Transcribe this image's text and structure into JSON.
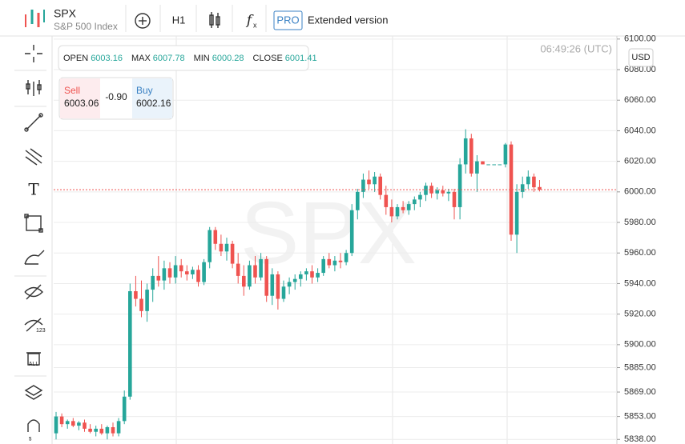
{
  "header": {
    "symbol": "SPX",
    "name": "S&P 500 Index",
    "timeframe": "H1",
    "pro": "PRO",
    "extended": "Extended version"
  },
  "ohlc": [
    {
      "label": "OPEN",
      "value": "6003.16"
    },
    {
      "label": "MAX",
      "value": "6007.78"
    },
    {
      "label": "MIN",
      "value": "6000.28"
    },
    {
      "label": "CLOSE",
      "value": "6001.41"
    }
  ],
  "trade": {
    "sell_label": "Sell",
    "sell": "6003.06",
    "spread": "-0.90",
    "buy_label": "Buy",
    "buy": "6002.16"
  },
  "clock": "06:49:26 (UTC)",
  "currency": "USD",
  "chart_data": {
    "type": "candlestick",
    "watermark": "SPX",
    "up_color": "#26a69a",
    "down_color": "#ef5350",
    "grid": true,
    "ylim": [
      5835,
      6102
    ],
    "yticks": [
      {
        "value": 6100,
        "label": "6100.00"
      },
      {
        "value": 6080,
        "label": "6080.00"
      },
      {
        "value": 6060,
        "label": "6060.00"
      },
      {
        "value": 6040,
        "label": "6040.00"
      },
      {
        "value": 6020,
        "label": "6020.00"
      },
      {
        "value": 6000,
        "label": "6000.00"
      },
      {
        "value": 5980,
        "label": "5980.00"
      },
      {
        "value": 5960,
        "label": "5960.00"
      },
      {
        "value": 5940,
        "label": "5940.00"
      },
      {
        "value": 5920,
        "label": "5920.00"
      },
      {
        "value": 5900,
        "label": "5900.00"
      },
      {
        "value": 5885,
        "label": "5885.00"
      },
      {
        "value": 5869,
        "label": "5869.00"
      },
      {
        "value": 5853,
        "label": "5853.00"
      },
      {
        "value": 5838,
        "label": "5838.00"
      }
    ],
    "candles": [
      [
        5842,
        5856,
        5838,
        5853
      ],
      [
        5853,
        5855,
        5846,
        5848
      ],
      [
        5848,
        5851,
        5845,
        5850
      ],
      [
        5850,
        5852,
        5846,
        5847
      ],
      [
        5847,
        5850,
        5844,
        5849
      ],
      [
        5849,
        5851,
        5843,
        5845
      ],
      [
        5845,
        5848,
        5842,
        5843
      ],
      [
        5843,
        5847,
        5840,
        5845
      ],
      [
        5845,
        5848,
        5841,
        5842
      ],
      [
        5842,
        5847,
        5838,
        5846
      ],
      [
        5846,
        5849,
        5840,
        5842
      ],
      [
        5842,
        5852,
        5840,
        5850
      ],
      [
        5850,
        5870,
        5848,
        5866
      ],
      [
        5866,
        5940,
        5864,
        5935
      ],
      [
        5935,
        5945,
        5925,
        5930
      ],
      [
        5930,
        5942,
        5918,
        5922
      ],
      [
        5922,
        5940,
        5915,
        5936
      ],
      [
        5936,
        5950,
        5928,
        5945
      ],
      [
        5945,
        5958,
        5938,
        5942
      ],
      [
        5942,
        5955,
        5936,
        5950
      ],
      [
        5950,
        5954,
        5940,
        5944
      ],
      [
        5944,
        5958,
        5940,
        5952
      ],
      [
        5952,
        5956,
        5944,
        5948
      ],
      [
        5948,
        5952,
        5942,
        5946
      ],
      [
        5946,
        5951,
        5943,
        5949
      ],
      [
        5949,
        5952,
        5938,
        5941
      ],
      [
        5941,
        5956,
        5939,
        5954
      ],
      [
        5954,
        5977,
        5950,
        5975
      ],
      [
        5975,
        5977,
        5962,
        5966
      ],
      [
        5966,
        5972,
        5958,
        5961
      ],
      [
        5961,
        5970,
        5955,
        5966
      ],
      [
        5966,
        5968,
        5950,
        5953
      ],
      [
        5953,
        5960,
        5940,
        5945
      ],
      [
        5945,
        5952,
        5932,
        5938
      ],
      [
        5938,
        5955,
        5936,
        5952
      ],
      [
        5952,
        5958,
        5940,
        5944
      ],
      [
        5944,
        5960,
        5942,
        5956
      ],
      [
        5956,
        5958,
        5928,
        5932
      ],
      [
        5932,
        5950,
        5926,
        5946
      ],
      [
        5946,
        5948,
        5923,
        5930
      ],
      [
        5930,
        5942,
        5928,
        5938
      ],
      [
        5938,
        5944,
        5933,
        5941
      ],
      [
        5941,
        5946,
        5936,
        5943
      ],
      [
        5943,
        5948,
        5938,
        5946
      ],
      [
        5946,
        5950,
        5942,
        5948
      ],
      [
        5948,
        5952,
        5940,
        5944
      ],
      [
        5944,
        5950,
        5941,
        5947
      ],
      [
        5947,
        5958,
        5945,
        5956
      ],
      [
        5956,
        5960,
        5950,
        5952
      ],
      [
        5952,
        5958,
        5948,
        5955
      ],
      [
        5955,
        5960,
        5950,
        5954
      ],
      [
        5954,
        5962,
        5952,
        5960
      ],
      [
        5960,
        5992,
        5958,
        5988
      ],
      [
        5988,
        6002,
        5982,
        6000
      ],
      [
        6000,
        6012,
        5996,
        6008
      ],
      [
        6008,
        6014,
        6002,
        6005
      ],
      [
        6005,
        6013,
        6000,
        6010
      ],
      [
        6010,
        6012,
        5995,
        5998
      ],
      [
        5998,
        6004,
        5985,
        5990
      ],
      [
        5990,
        5995,
        5980,
        5984
      ],
      [
        5984,
        5992,
        5982,
        5990
      ],
      [
        5990,
        5994,
        5986,
        5988
      ],
      [
        5988,
        5994,
        5985,
        5992
      ],
      [
        5992,
        5997,
        5988,
        5995
      ],
      [
        5995,
        6000,
        5990,
        5998
      ],
      [
        5998,
        6006,
        5994,
        6004
      ],
      [
        6004,
        6006,
        5996,
        5999
      ],
      [
        5999,
        6003,
        5995,
        6001
      ],
      [
        6001,
        6004,
        5997,
        5999
      ],
      [
        5999,
        6002,
        5994,
        6000
      ],
      [
        6000,
        6002,
        5982,
        5990
      ],
      [
        5990,
        6022,
        5982,
        6018
      ],
      [
        6018,
        6041,
        6012,
        6035
      ],
      [
        6035,
        6038,
        6010,
        6012
      ],
      [
        6012,
        6024,
        6000,
        6020
      ],
      [
        6020,
        6020,
        6018,
        6018
      ],
      [
        6018,
        6018,
        6018,
        6018
      ],
      [
        6018,
        6018,
        6018,
        6018
      ],
      [
        6018,
        6018,
        6018,
        6018
      ],
      [
        6018,
        6032,
        6016,
        6031
      ],
      [
        6031,
        6033,
        5968,
        5972
      ],
      [
        5972,
        6005,
        5960,
        6000
      ],
      [
        6000,
        6010,
        5996,
        6005
      ],
      [
        6005,
        6014,
        6002,
        6010
      ],
      [
        6010,
        6012,
        6000,
        6003
      ],
      [
        6003.16,
        6007.78,
        6000.28,
        6001.41
      ]
    ]
  }
}
